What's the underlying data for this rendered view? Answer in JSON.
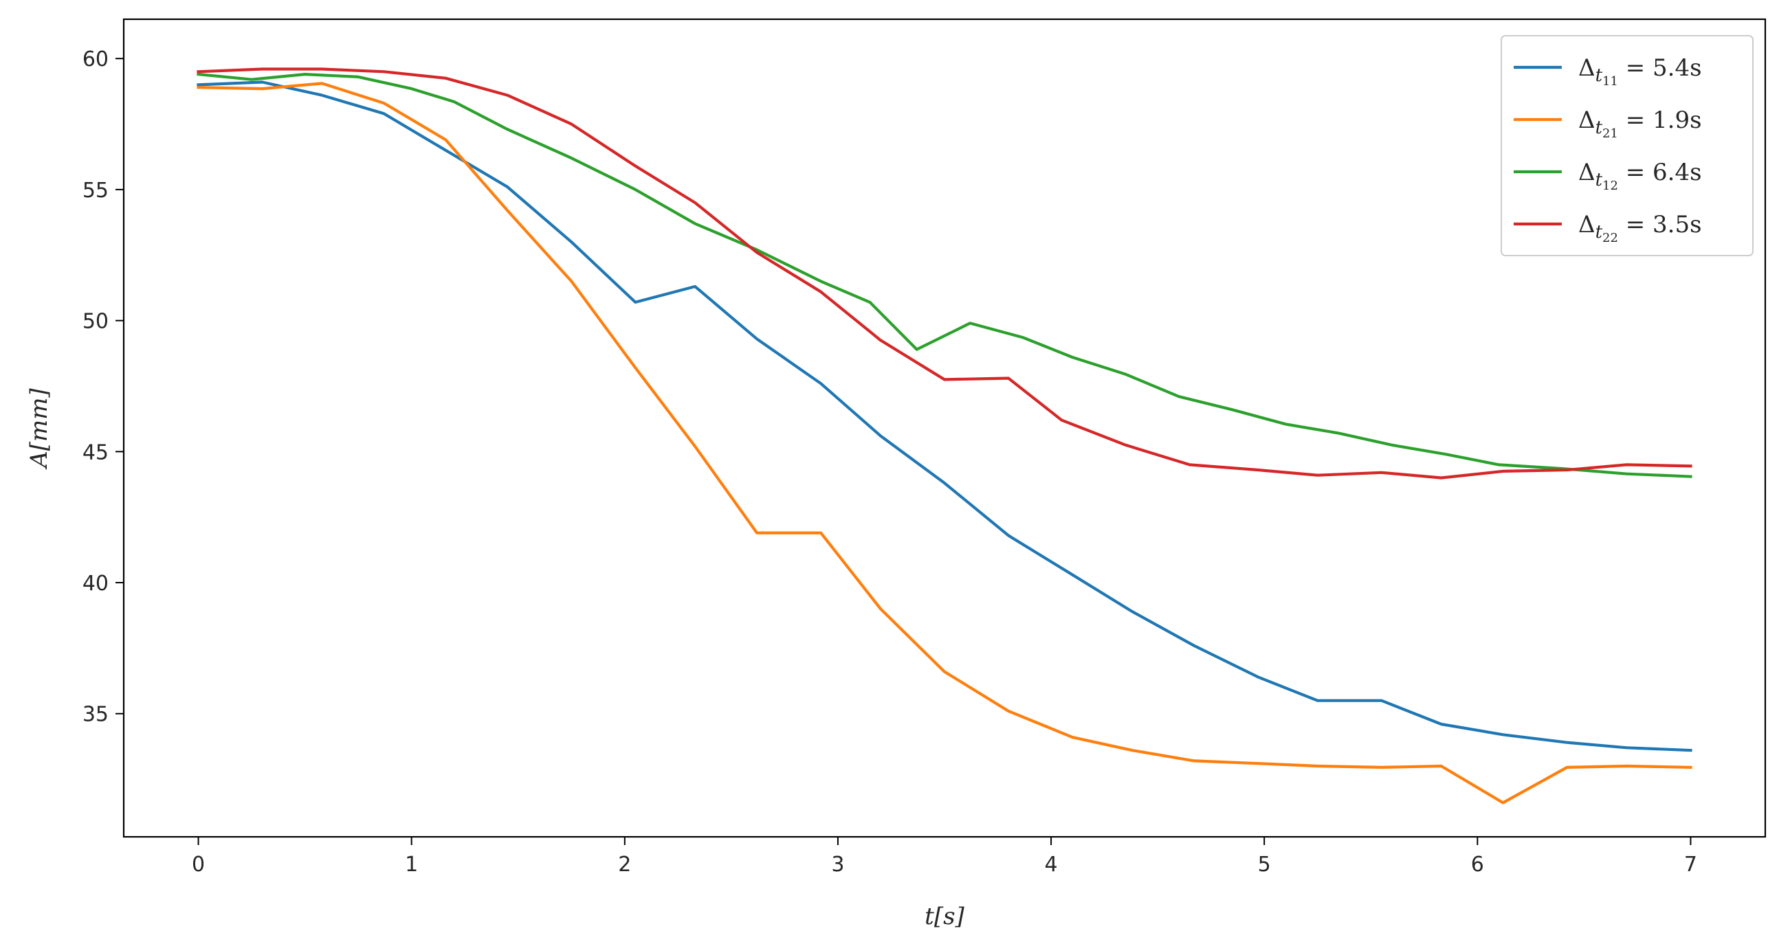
{
  "chart_data": {
    "type": "line",
    "xlabel": "t[s]",
    "ylabel": "A[mm]",
    "xlim": [
      -0.35,
      7.35
    ],
    "ylim": [
      30.3,
      61.5
    ],
    "xticks": [
      0,
      1,
      2,
      3,
      4,
      5,
      6,
      7
    ],
    "yticks": [
      35,
      40,
      45,
      50,
      55,
      60
    ],
    "grid": false,
    "legend_position": "top-right",
    "series": [
      {
        "name": "Δt11 = 5.4s",
        "legend": {
          "delta": "Δ",
          "sub_t": "t",
          "sub_idx": "11",
          "rest": " = 5.4s"
        },
        "color": "#1f77b4",
        "points": [
          [
            0,
            59.0
          ],
          [
            0.3,
            59.1
          ],
          [
            0.58,
            58.6
          ],
          [
            0.87,
            57.9
          ],
          [
            1.16,
            56.5
          ],
          [
            1.45,
            55.1
          ],
          [
            1.75,
            53.0
          ],
          [
            2.05,
            50.7
          ],
          [
            2.33,
            51.3
          ],
          [
            2.62,
            49.3
          ],
          [
            2.92,
            47.6
          ],
          [
            3.2,
            45.6
          ],
          [
            3.5,
            43.8
          ],
          [
            3.8,
            41.8
          ],
          [
            4.1,
            40.3
          ],
          [
            4.38,
            38.9
          ],
          [
            4.67,
            37.6
          ],
          [
            4.97,
            36.4
          ],
          [
            5.25,
            35.5
          ],
          [
            5.55,
            35.5
          ],
          [
            5.83,
            34.6
          ],
          [
            6.12,
            34.2
          ],
          [
            6.42,
            33.9
          ],
          [
            6.7,
            33.7
          ],
          [
            7.0,
            33.6
          ]
        ]
      },
      {
        "name": "Δt21 = 1.9s",
        "legend": {
          "delta": "Δ",
          "sub_t": "t",
          "sub_idx": "21",
          "rest": " = 1.9s"
        },
        "color": "#ff7f0e",
        "points": [
          [
            0,
            58.9
          ],
          [
            0.3,
            58.85
          ],
          [
            0.58,
            59.05
          ],
          [
            0.87,
            58.3
          ],
          [
            1.16,
            56.9
          ],
          [
            1.45,
            54.2
          ],
          [
            1.75,
            51.5
          ],
          [
            2.05,
            48.2
          ],
          [
            2.33,
            45.2
          ],
          [
            2.62,
            41.9
          ],
          [
            2.92,
            41.9
          ],
          [
            3.2,
            39.0
          ],
          [
            3.5,
            36.6
          ],
          [
            3.8,
            35.1
          ],
          [
            4.1,
            34.1
          ],
          [
            4.38,
            33.6
          ],
          [
            4.67,
            33.2
          ],
          [
            4.97,
            33.1
          ],
          [
            5.25,
            33.0
          ],
          [
            5.55,
            32.95
          ],
          [
            5.83,
            33.0
          ],
          [
            6.12,
            31.6
          ],
          [
            6.42,
            32.95
          ],
          [
            6.7,
            33.0
          ],
          [
            7.0,
            32.95
          ]
        ]
      },
      {
        "name": "Δt12 = 6.4s",
        "legend": {
          "delta": "Δ",
          "sub_t": "t",
          "sub_idx": "12",
          "rest": " = 6.4s"
        },
        "color": "#2ca02c",
        "points": [
          [
            0,
            59.4
          ],
          [
            0.25,
            59.2
          ],
          [
            0.5,
            59.4
          ],
          [
            0.75,
            59.3
          ],
          [
            1.0,
            58.85
          ],
          [
            1.2,
            58.35
          ],
          [
            1.45,
            57.3
          ],
          [
            1.75,
            56.2
          ],
          [
            2.05,
            55.0
          ],
          [
            2.33,
            53.7
          ],
          [
            2.62,
            52.7
          ],
          [
            2.92,
            51.5
          ],
          [
            3.15,
            50.7
          ],
          [
            3.37,
            48.9
          ],
          [
            3.62,
            49.9
          ],
          [
            3.87,
            49.35
          ],
          [
            4.1,
            48.6
          ],
          [
            4.35,
            47.95
          ],
          [
            4.6,
            47.1
          ],
          [
            4.85,
            46.6
          ],
          [
            5.1,
            46.05
          ],
          [
            5.35,
            45.7
          ],
          [
            5.6,
            45.25
          ],
          [
            5.85,
            44.9
          ],
          [
            6.1,
            44.5
          ],
          [
            6.4,
            44.35
          ],
          [
            6.7,
            44.15
          ],
          [
            7.0,
            44.05
          ]
        ]
      },
      {
        "name": "Δt22 = 3.5s",
        "legend": {
          "delta": "Δ",
          "sub_t": "t",
          "sub_idx": "22",
          "rest": " = 3.5s"
        },
        "color": "#d62728",
        "points": [
          [
            0,
            59.5
          ],
          [
            0.3,
            59.6
          ],
          [
            0.58,
            59.6
          ],
          [
            0.87,
            59.5
          ],
          [
            1.16,
            59.25
          ],
          [
            1.45,
            58.6
          ],
          [
            1.75,
            57.5
          ],
          [
            2.05,
            55.9
          ],
          [
            2.33,
            54.5
          ],
          [
            2.62,
            52.6
          ],
          [
            2.92,
            51.1
          ],
          [
            3.2,
            49.25
          ],
          [
            3.5,
            47.75
          ],
          [
            3.8,
            47.8
          ],
          [
            4.05,
            46.2
          ],
          [
            4.35,
            45.25
          ],
          [
            4.65,
            44.5
          ],
          [
            4.97,
            44.3
          ],
          [
            5.25,
            44.1
          ],
          [
            5.55,
            44.2
          ],
          [
            5.83,
            44.0
          ],
          [
            6.12,
            44.25
          ],
          [
            6.42,
            44.3
          ],
          [
            6.7,
            44.5
          ],
          [
            7.0,
            44.45
          ]
        ]
      }
    ]
  }
}
